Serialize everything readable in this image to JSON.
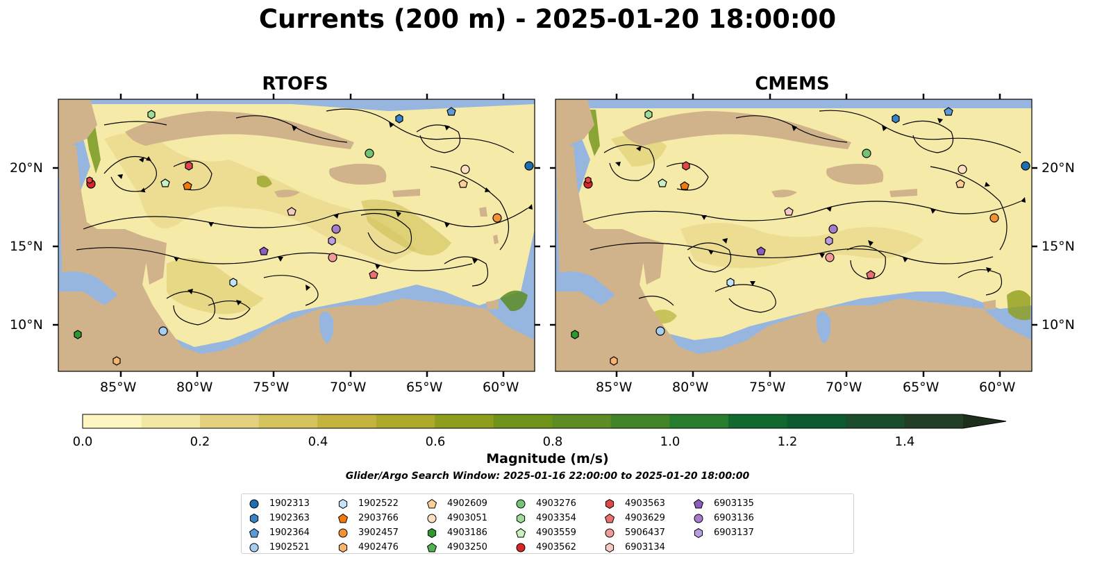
{
  "title": "Currents (200 m) - 2025-01-20 18:00:00",
  "panels": [
    {
      "title": "RTOFS"
    },
    {
      "title": "CMEMS"
    }
  ],
  "axes": {
    "lon_ticks": [
      "85°W",
      "80°W",
      "75°W",
      "70°W",
      "65°W",
      "60°W"
    ],
    "lat_ticks": [
      "20°N",
      "15°N",
      "10°N"
    ]
  },
  "colorbar": {
    "title": "Magnitude (m/s)",
    "ticks": [
      "0.0",
      "0.2",
      "0.4",
      "0.6",
      "0.8",
      "1.0",
      "1.2",
      "1.4"
    ],
    "range": [
      0.0,
      1.5
    ],
    "extend": "max",
    "colors": [
      "#fdf6c0",
      "#f3e7a4",
      "#e3d180",
      "#d4c35d",
      "#c4b43f",
      "#aca82a",
      "#8f9d1c",
      "#6f9319",
      "#5d8c25",
      "#438428",
      "#287d2e",
      "#11692f",
      "#0d5a30",
      "#1b4d2c",
      "#223e27",
      "#1d2e1c"
    ]
  },
  "search_window": "Glider/Argo Search Window: 2025-01-16 22:00:00 to 2025-01-20 18:00:00",
  "colors": {
    "ocean": "#96b6e0",
    "land": "#d1b38b",
    "slow_current": "#f6eaa8"
  },
  "legend": [
    {
      "label": "1902313",
      "marker": "circle",
      "color": "#1f6fb0"
    },
    {
      "label": "1902363",
      "marker": "hexagon",
      "color": "#3a82c4"
    },
    {
      "label": "1902364",
      "marker": "pentagon",
      "color": "#5a9bd5"
    },
    {
      "label": "1902521",
      "marker": "circle",
      "color": "#a6cdf0"
    },
    {
      "label": "1902522",
      "marker": "hexagon",
      "color": "#c3e2fb"
    },
    {
      "label": "2903766",
      "marker": "pentagon",
      "color": "#f07a0c"
    },
    {
      "label": "3902457",
      "marker": "circle",
      "color": "#f39233"
    },
    {
      "label": "4902476",
      "marker": "hexagon",
      "color": "#f8b46c"
    },
    {
      "label": "4902609",
      "marker": "pentagon",
      "color": "#fbcf96"
    },
    {
      "label": "4903051",
      "marker": "circle",
      "color": "#fde0c1"
    },
    {
      "label": "4903186",
      "marker": "hexagon",
      "color": "#2c9a2c"
    },
    {
      "label": "4903250",
      "marker": "pentagon",
      "color": "#52b150"
    },
    {
      "label": "4903276",
      "marker": "circle",
      "color": "#74c476"
    },
    {
      "label": "4903354",
      "marker": "hexagon",
      "color": "#9fdc98"
    },
    {
      "label": "4903559",
      "marker": "pentagon",
      "color": "#c9f0c0"
    },
    {
      "label": "4903562",
      "marker": "circle",
      "color": "#d62728"
    },
    {
      "label": "4903563",
      "marker": "hexagon",
      "color": "#e04848"
    },
    {
      "label": "4903629",
      "marker": "pentagon",
      "color": "#e87070"
    },
    {
      "label": "5906437",
      "marker": "circle",
      "color": "#f19b9b"
    },
    {
      "label": "6903134",
      "marker": "hexagon",
      "color": "#f8c9c0"
    },
    {
      "label": "6903135",
      "marker": "pentagon",
      "color": "#8e5cbd"
    },
    {
      "label": "6903136",
      "marker": "circle",
      "color": "#a57ccb"
    },
    {
      "label": "6903137",
      "marker": "hexagon",
      "color": "#bc9de0"
    }
  ]
}
